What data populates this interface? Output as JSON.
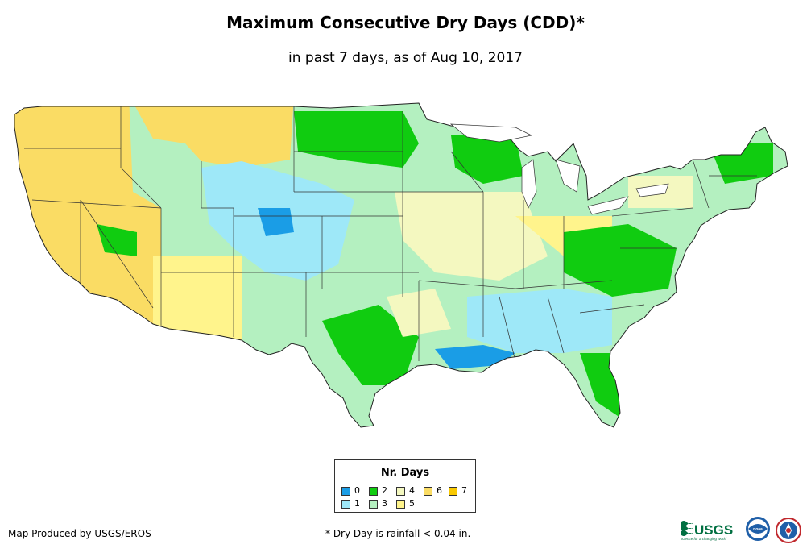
{
  "title": "Maximum Consecutive Dry Days (CDD)*",
  "subtitle": "in past 7 days, as of Aug 10, 2017",
  "legend": {
    "title": "Nr. Days",
    "items": [
      {
        "label": "0",
        "color": "#1a9de6"
      },
      {
        "label": "1",
        "color": "#9ee8f8"
      },
      {
        "label": "2",
        "color": "#10cc10"
      },
      {
        "label": "3",
        "color": "#b4f0c0"
      },
      {
        "label": "4",
        "color": "#f4f8c0"
      },
      {
        "label": "5",
        "color": "#fff48c"
      },
      {
        "label": "6",
        "color": "#fadc64"
      },
      {
        "label": "7",
        "color": "#f8c800"
      }
    ]
  },
  "credit": "Map Produced by USGS/EROS",
  "footnote": "* Dry Day is rainfall < 0.04 in.",
  "logos": {
    "usgs": "USGS",
    "usgs_tagline": "science for a changing world",
    "noaa": "noaa"
  }
}
